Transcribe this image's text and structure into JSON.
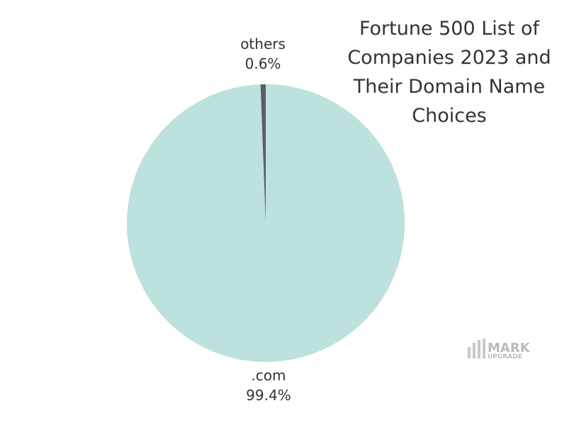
{
  "chart_data": {
    "type": "pie",
    "title": "Fortune 500 List of Companies 2023 and Their Domain Name Choices",
    "categories": [
      ".com",
      "others"
    ],
    "values": [
      99.4,
      0.6
    ],
    "value_labels": [
      "99.4%",
      "0.6%"
    ],
    "colors": [
      "#bde1dc",
      "#5f5a6b"
    ]
  },
  "watermark": {
    "line1": "MARK",
    "line2": "UPGRADE"
  }
}
